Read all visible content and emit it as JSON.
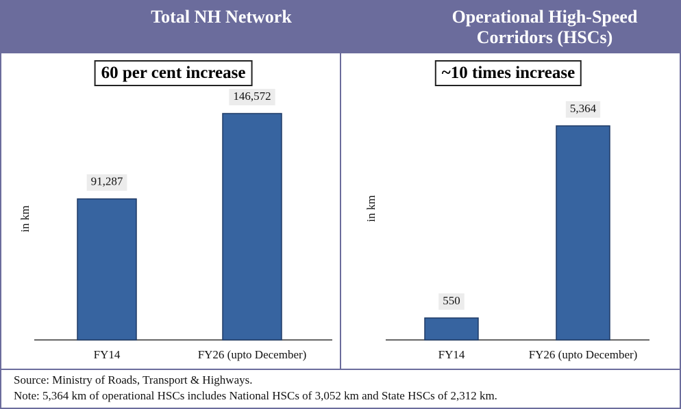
{
  "chart_data": [
    {
      "type": "bar",
      "title": "Total NH Network",
      "subtitle": "60 per cent increase",
      "ylabel": "in km",
      "categories": [
        "FY14",
        "FY26 (upto December)"
      ],
      "values": [
        91287,
        146572
      ],
      "value_labels": [
        "91,287",
        "146,572"
      ],
      "color": "#3764a0",
      "ylim": [
        0,
        162500
      ]
    },
    {
      "type": "bar",
      "title": "Operational High-Speed Corridors (HSCs)",
      "subtitle": "~10 times increase",
      "ylabel": "in km",
      "categories": [
        "FY14",
        "FY26 (upto December)"
      ],
      "values": [
        550,
        5364
      ],
      "value_labels": [
        "550",
        "5,364"
      ],
      "color": "#3764a0",
      "ylim": [
        0,
        6290
      ]
    }
  ],
  "source": "Source: Ministry of Roads, Transport & Highways.",
  "note": "Note: 5,364 km of operational HSCs includes National HSCs of 3,052 km and State HSCs of 2,312 km."
}
